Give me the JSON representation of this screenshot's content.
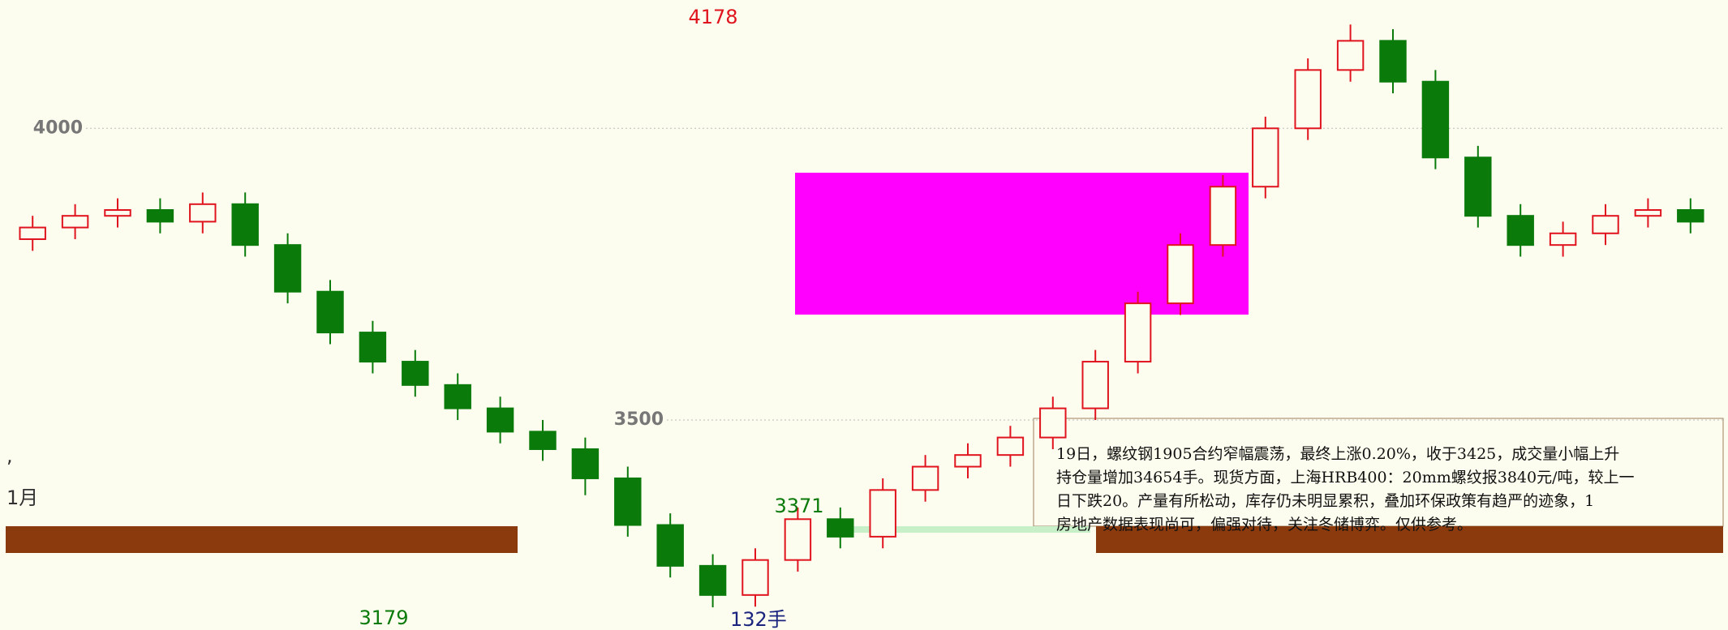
{
  "chart_data": {
    "type": "candlestick",
    "categories": [
      null,
      null,
      null,
      null,
      null,
      null,
      null,
      null,
      null,
      null,
      null,
      null,
      null,
      null,
      null,
      null,
      null,
      null,
      null,
      null,
      null,
      null,
      null,
      null,
      null,
      null,
      null,
      null,
      null,
      null,
      null,
      null,
      null,
      null,
      null,
      null,
      null,
      null,
      null,
      null
    ],
    "open": [
      3810,
      3830,
      3850,
      3860,
      3840,
      3870,
      3800,
      3720,
      3650,
      3600,
      3560,
      3520,
      3480,
      3450,
      3400,
      3320,
      3250,
      3200,
      3260,
      3330,
      3300,
      3380,
      3420,
      3440,
      3470,
      3520,
      3600,
      3700,
      3800,
      3900,
      4000,
      4100,
      4150,
      4080,
      3950,
      3850,
      3800,
      3820,
      3850,
      3860
    ],
    "high": [
      3850,
      3870,
      3880,
      3880,
      3890,
      3890,
      3820,
      3740,
      3670,
      3620,
      3580,
      3540,
      3500,
      3470,
      3420,
      3340,
      3270,
      3280,
      3350,
      3350,
      3400,
      3440,
      3460,
      3490,
      3540,
      3620,
      3720,
      3820,
      3920,
      4020,
      4120,
      4178,
      4170,
      4100,
      3970,
      3870,
      3840,
      3870,
      3880,
      3880
    ],
    "low": [
      3790,
      3810,
      3830,
      3820,
      3820,
      3780,
      3700,
      3630,
      3580,
      3540,
      3500,
      3460,
      3430,
      3371,
      3300,
      3230,
      3179,
      3180,
      3240,
      3280,
      3280,
      3360,
      3400,
      3420,
      3450,
      3500,
      3580,
      3680,
      3780,
      3880,
      3980,
      4080,
      4060,
      3930,
      3830,
      3780,
      3780,
      3800,
      3830,
      3820
    ],
    "close": [
      3830,
      3850,
      3860,
      3840,
      3870,
      3800,
      3720,
      3650,
      3600,
      3560,
      3520,
      3480,
      3450,
      3400,
      3320,
      3250,
      3200,
      3260,
      3330,
      3300,
      3380,
      3420,
      3440,
      3470,
      3520,
      3600,
      3700,
      3800,
      3900,
      4000,
      4100,
      4150,
      4080,
      3950,
      3850,
      3800,
      3820,
      3850,
      3860,
      3840
    ],
    "up_color": "#e0141e",
    "down_color": "#0a7a0a",
    "ylim": [
      3140,
      4220
    ],
    "yticks": [
      4000,
      3500
    ],
    "grid": true,
    "price_labels": [
      4178,
      3371,
      3179
    ],
    "annotations": [
      ",",
      "1月",
      "132手"
    ],
    "comment": [
      "19日，螺纹钢1905合约窄幅震荡，最终上涨0.20%，收于3425，成交量小幅上升",
      "持仓量增加34654手。现货方面，上海HRB400：20mm螺纹报3840元/吨，较上一",
      "日下跌20。产量有所松动，库存仍未明显累积，叠加环保政策有趋严的迹象，1",
      "房地产数据表现尚可，偏强对待，关注冬储博弈。仅供参考。"
    ]
  }
}
